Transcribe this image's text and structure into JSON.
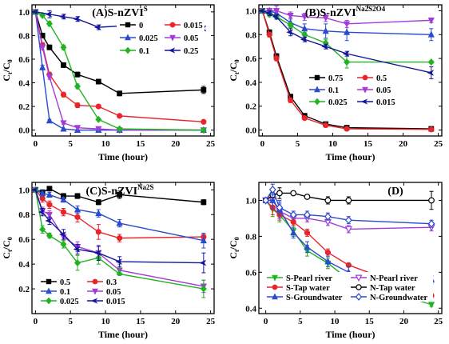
{
  "chart_data": [
    {
      "type": "line",
      "panel_label": "(A)S-nZVI",
      "panel_sup": "S",
      "xlabel": "Time (hour)",
      "ylabel_main": "C",
      "ylabel_sub1": "t",
      "ylabel_mid": "/C",
      "ylabel_sub2": "0",
      "xlim": [
        -0.5,
        25.5
      ],
      "ylim": [
        -0.05,
        1.06
      ],
      "xticks": [
        "0",
        "5",
        "10",
        "15",
        "20",
        "25"
      ],
      "xtick_values": [
        0,
        5,
        10,
        15,
        20,
        25
      ],
      "yticks": [
        "0.0",
        "0.2",
        "0.4",
        "0.6",
        "0.8",
        "1.0"
      ],
      "ytick_values": [
        0,
        0.2,
        0.4,
        0.6,
        0.8,
        1.0
      ],
      "legend_cols": 2,
      "legend_placement": "right-middle",
      "series": [
        {
          "name": "0",
          "color": "#000000",
          "marker": "square",
          "x": [
            0,
            1,
            2,
            4,
            6,
            9,
            12,
            24
          ],
          "y": [
            1.0,
            0.8,
            0.7,
            0.55,
            0.47,
            0.41,
            0.31,
            0.34
          ],
          "err": [
            0,
            0.02,
            0.02,
            0.02,
            0.02,
            0.02,
            0.02,
            0.03
          ]
        },
        {
          "name": "0.015",
          "color": "#e8242c",
          "marker": "circle",
          "x": [
            0,
            1,
            2,
            4,
            6,
            9,
            12,
            24
          ],
          "y": [
            1.0,
            0.72,
            0.47,
            0.3,
            0.21,
            0.2,
            0.12,
            0.07
          ],
          "err": [
            0,
            0.02,
            0.02,
            0.02,
            0.02,
            0.01,
            0.01,
            0.01
          ]
        },
        {
          "name": "0.025",
          "color": "#2b4bcc",
          "marker": "triangle-up",
          "x": [
            0,
            1,
            2,
            4,
            6,
            9,
            12,
            24
          ],
          "y": [
            1.0,
            0.53,
            0.08,
            0.01,
            0.0,
            0.0,
            0.0,
            0.0
          ],
          "err": [
            0,
            0.02,
            0.01,
            0,
            0,
            0,
            0,
            0
          ]
        },
        {
          "name": "0.05",
          "color": "#a23bd9",
          "marker": "triangle-down",
          "x": [
            0,
            1,
            2,
            4,
            6,
            9,
            12,
            24
          ],
          "y": [
            1.0,
            0.7,
            0.45,
            0.06,
            0.02,
            0.01,
            0.0,
            0.0
          ],
          "err": [
            0,
            0.02,
            0.02,
            0.01,
            0,
            0,
            0,
            0
          ]
        },
        {
          "name": "0.1",
          "color": "#21b321",
          "marker": "diamond",
          "x": [
            0,
            1,
            2,
            4,
            6,
            9,
            12,
            24
          ],
          "y": [
            1.0,
            0.97,
            0.9,
            0.7,
            0.37,
            0.09,
            0.01,
            0.0
          ],
          "err": [
            0,
            0.01,
            0.02,
            0.02,
            0.02,
            0.01,
            0,
            0
          ]
        },
        {
          "name": "0.25",
          "color": "#15159a",
          "marker": "diamond-left",
          "x": [
            0,
            2,
            4,
            6,
            9,
            12,
            24
          ],
          "y": [
            1.0,
            0.98,
            0.96,
            0.94,
            0.87,
            0.88,
            0.86
          ],
          "err": [
            0,
            0.03,
            0.02,
            0.02,
            0.02,
            0.02,
            0.02
          ]
        }
      ]
    },
    {
      "type": "line",
      "panel_label": "(B)S-nZVI",
      "panel_sup": "Na2S2O4",
      "xlabel": "Time (hour)",
      "ylabel_main": "C",
      "ylabel_sub1": "t",
      "ylabel_mid": "/C",
      "ylabel_sub2": "0",
      "xlim": [
        -0.5,
        25.5
      ],
      "ylim": [
        -0.05,
        1.05
      ],
      "xticks": [
        "0",
        "5",
        "10",
        "15",
        "20",
        "25"
      ],
      "xtick_values": [
        0,
        5,
        10,
        15,
        20,
        25
      ],
      "yticks": [
        "0.0",
        "0.2",
        "0.4",
        "0.6",
        "0.8",
        "1.0"
      ],
      "ytick_values": [
        0,
        0.2,
        0.4,
        0.6,
        0.8,
        1.0
      ],
      "legend_cols": 2,
      "legend_placement": "right-middle",
      "series": [
        {
          "name": "0.75",
          "color": "#000000",
          "marker": "square",
          "x": [
            0,
            1,
            2,
            4,
            6,
            9,
            12,
            24
          ],
          "y": [
            1.0,
            0.82,
            0.62,
            0.28,
            0.12,
            0.05,
            0.02,
            0.01
          ],
          "err": [
            0,
            0.02,
            0.02,
            0.02,
            0.01,
            0.01,
            0,
            0
          ]
        },
        {
          "name": "0.5",
          "color": "#e8242c",
          "marker": "circle",
          "x": [
            0,
            1,
            2,
            4,
            6,
            9,
            12,
            24
          ],
          "y": [
            1.0,
            0.8,
            0.6,
            0.25,
            0.1,
            0.04,
            0.01,
            0.005
          ],
          "err": [
            0,
            0.02,
            0.02,
            0.02,
            0.01,
            0.01,
            0,
            0
          ]
        },
        {
          "name": "0.1",
          "color": "#2b4bcc",
          "marker": "triangle-up",
          "x": [
            0,
            1,
            2,
            4,
            6,
            9,
            12,
            24
          ],
          "y": [
            1.0,
            1.0,
            0.98,
            0.9,
            0.85,
            0.83,
            0.82,
            0.8
          ],
          "err": [
            0,
            0.02,
            0.03,
            0.04,
            0.04,
            0.06,
            0.07,
            0.05
          ]
        },
        {
          "name": "0.05",
          "color": "#a23bd9",
          "marker": "triangle-down",
          "x": [
            0,
            1,
            2,
            4,
            6,
            9,
            12,
            24
          ],
          "y": [
            1.0,
            1.0,
            1.0,
            0.96,
            0.95,
            0.94,
            0.89,
            0.92
          ],
          "err": [
            0,
            0.02,
            0.04,
            0.03,
            0.03,
            0.03,
            0.03,
            0.02
          ]
        },
        {
          "name": "0.025",
          "color": "#21b321",
          "marker": "diamond",
          "x": [
            0,
            1,
            2,
            4,
            6,
            9,
            12,
            24
          ],
          "y": [
            1.0,
            0.97,
            0.95,
            0.88,
            0.8,
            0.73,
            0.57,
            0.57
          ],
          "err": [
            0,
            0.02,
            0.02,
            0.02,
            0.02,
            0.03,
            0.05,
            0.01
          ]
        },
        {
          "name": "0.015",
          "color": "#15159a",
          "marker": "diamond-left",
          "x": [
            0,
            1,
            2,
            4,
            6,
            9,
            12,
            24
          ],
          "y": [
            1.0,
            0.98,
            0.95,
            0.82,
            0.76,
            0.7,
            0.64,
            0.48
          ],
          "err": [
            0,
            0.02,
            0.02,
            0.03,
            0.02,
            0.02,
            0.02,
            0.05
          ]
        }
      ]
    },
    {
      "type": "line",
      "panel_label": "(C)S-nZVI",
      "panel_sup": "Na2S",
      "xlabel": "Time (hour)",
      "ylabel_main": "C",
      "ylabel_sub1": "t",
      "ylabel_mid": "/C",
      "ylabel_sub2": "0",
      "xlim": [
        -0.5,
        25.5
      ],
      "ylim": [
        0.0,
        1.06
      ],
      "xticks": [
        "0",
        "5",
        "10",
        "15",
        "20",
        "25"
      ],
      "xtick_values": [
        0,
        5,
        10,
        15,
        20,
        25
      ],
      "yticks": [
        "0.2",
        "0.4",
        "0.6",
        "0.8",
        "1.0"
      ],
      "ytick_values": [
        0.2,
        0.4,
        0.6,
        0.8,
        1.0
      ],
      "legend_cols": 2,
      "legend_placement": "bottom-left",
      "series": [
        {
          "name": "0.5",
          "color": "#000000",
          "marker": "square",
          "x": [
            0,
            1,
            2,
            4,
            6,
            9,
            12,
            24
          ],
          "y": [
            1.0,
            0.98,
            1.01,
            0.95,
            0.95,
            0.9,
            0.96,
            0.9
          ],
          "err": [
            0,
            0.02,
            0.01,
            0.02,
            0.02,
            0.02,
            0.03,
            0.02
          ]
        },
        {
          "name": "0.3",
          "color": "#e8242c",
          "marker": "circle",
          "x": [
            0,
            1,
            2,
            4,
            6,
            9,
            12,
            24
          ],
          "y": [
            1.0,
            0.93,
            0.88,
            0.82,
            0.78,
            0.66,
            0.61,
            0.62
          ],
          "err": [
            0,
            0.03,
            0.03,
            0.03,
            0.04,
            0.06,
            0.03,
            0.02
          ]
        },
        {
          "name": "0.1",
          "color": "#2b4bcc",
          "marker": "triangle-up",
          "x": [
            0,
            1,
            2,
            4,
            6,
            9,
            12,
            24
          ],
          "y": [
            1.0,
            0.97,
            0.96,
            0.92,
            0.84,
            0.81,
            0.73,
            0.59
          ],
          "err": [
            0,
            0.02,
            0.02,
            0.02,
            0.03,
            0.03,
            0.03,
            0.06
          ]
        },
        {
          "name": "0.05",
          "color": "#a23bd9",
          "marker": "triangle-down",
          "x": [
            0,
            1,
            2,
            4,
            6,
            9,
            12,
            24
          ],
          "y": [
            1.0,
            0.83,
            0.8,
            0.62,
            0.54,
            0.49,
            0.35,
            0.22
          ],
          "err": [
            0,
            0.03,
            0.03,
            0.03,
            0.04,
            0.05,
            0.05,
            0.05
          ]
        },
        {
          "name": "0.025",
          "color": "#21b321",
          "marker": "diamond",
          "x": [
            0,
            1,
            2,
            4,
            6,
            9,
            12,
            24
          ],
          "y": [
            1.0,
            0.68,
            0.63,
            0.56,
            0.41,
            0.45,
            0.32,
            0.2
          ],
          "err": [
            0,
            0.03,
            0.02,
            0.03,
            0.06,
            0.05,
            0.05,
            0.07
          ]
        },
        {
          "name": "0.015",
          "color": "#15159a",
          "marker": "diamond-left",
          "x": [
            0,
            1,
            2,
            4,
            6,
            9,
            12,
            24
          ],
          "y": [
            1.0,
            0.82,
            0.75,
            0.64,
            0.52,
            0.49,
            0.42,
            0.41
          ],
          "err": [
            0,
            0.03,
            0.03,
            0.04,
            0.04,
            0.06,
            0.04,
            0.08
          ]
        }
      ]
    },
    {
      "type": "line",
      "panel_label": "(D)",
      "panel_sup": "",
      "xlabel": "Time (hour)",
      "ylabel_main": "C",
      "ylabel_sub1": "t",
      "ylabel_mid": "/C",
      "ylabel_sub2": "0",
      "xlim": [
        -1.0,
        25.5
      ],
      "ylim": [
        0.37,
        1.1
      ],
      "xticks": [
        "0",
        "5",
        "10",
        "15",
        "20",
        "25"
      ],
      "xtick_values": [
        0,
        5,
        10,
        15,
        20,
        25
      ],
      "yticks": [
        "0.4",
        "0.6",
        "0.8",
        "1.0"
      ],
      "ytick_values": [
        0.4,
        0.6,
        0.8,
        1.0
      ],
      "legend_cols": 2,
      "legend_placement": "bottom-left",
      "series": [
        {
          "name": "S-Pearl river",
          "color": "#21b321",
          "marker": "triangle-down",
          "x": [
            0,
            1,
            2,
            4,
            6,
            9,
            12,
            24
          ],
          "y": [
            1.0,
            0.95,
            0.92,
            0.83,
            0.72,
            0.65,
            0.56,
            0.42
          ],
          "err": [
            0,
            0.04,
            0.04,
            0.03,
            0.03,
            0.03,
            0.03,
            0.01
          ]
        },
        {
          "name": "N-Pearl river",
          "color": "#a23bd9",
          "marker": "triangle-down-open",
          "x": [
            0,
            1,
            2,
            4,
            6,
            9,
            12,
            24
          ],
          "y": [
            1.0,
            1.0,
            0.94,
            0.9,
            0.9,
            0.88,
            0.84,
            0.85
          ],
          "err": [
            0,
            0.03,
            0.04,
            0.02,
            0.02,
            0.02,
            0.02,
            0.02
          ]
        },
        {
          "name": "S-Tap water",
          "color": "#e8242c",
          "marker": "circle",
          "x": [
            0,
            1,
            2,
            4,
            6,
            9,
            12,
            24
          ],
          "y": [
            1.0,
            0.96,
            0.92,
            0.88,
            0.82,
            0.71,
            0.64,
            0.47
          ],
          "err": [
            0,
            0.04,
            0.03,
            0.02,
            0.02,
            0.02,
            0.01,
            0.01
          ]
        },
        {
          "name": "N-Tap water",
          "color": "#000000",
          "marker": "circle-open",
          "x": [
            0,
            1,
            2,
            4,
            6,
            9,
            12,
            24
          ],
          "y": [
            1.0,
            1.03,
            1.04,
            1.04,
            1.02,
            1.0,
            1.0,
            1.0
          ],
          "err": [
            0,
            0.03,
            0.03,
            0.01,
            0.01,
            0.02,
            0.02,
            0.05
          ]
        },
        {
          "name": "S-Groundwater",
          "color": "#2b4bcc",
          "marker": "triangle-up",
          "x": [
            0,
            1,
            2,
            4,
            6,
            9,
            12,
            24
          ],
          "y": [
            1.0,
            1.0,
            0.95,
            0.82,
            0.74,
            0.66,
            0.6,
            0.56
          ],
          "err": [
            0,
            0.05,
            0.05,
            0.03,
            0.03,
            0.03,
            0.03,
            0.02
          ]
        },
        {
          "name": "N-Groundwater",
          "color": "#2b4bcc",
          "marker": "diamond-open",
          "x": [
            0,
            1,
            2,
            4,
            6,
            9,
            12,
            24
          ],
          "y": [
            1.0,
            1.06,
            0.96,
            0.92,
            0.92,
            0.91,
            0.89,
            0.87
          ],
          "err": [
            0,
            0.03,
            0.03,
            0.02,
            0.02,
            0.02,
            0.02,
            0.02
          ]
        }
      ]
    }
  ]
}
